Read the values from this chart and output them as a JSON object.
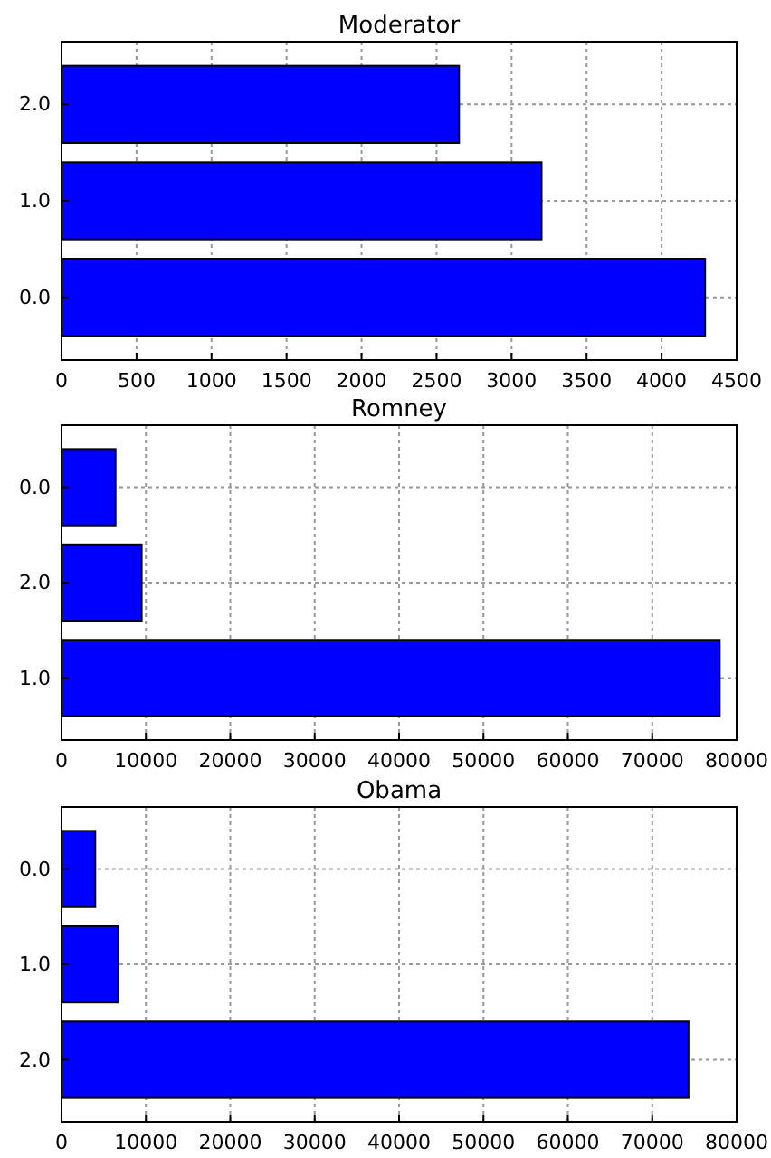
{
  "chart_data": [
    {
      "type": "bar",
      "orientation": "horizontal",
      "title": "Moderator",
      "categories": [
        "2.0",
        "1.0",
        "0.0"
      ],
      "values": [
        2650,
        3200,
        4290
      ],
      "color": "#0000ff",
      "xlim": [
        0,
        4500
      ],
      "xticks": [
        0,
        500,
        1000,
        1500,
        2000,
        2500,
        3000,
        3500,
        4000,
        4500
      ],
      "grid": true
    },
    {
      "type": "bar",
      "orientation": "horizontal",
      "title": "Romney",
      "categories": [
        "0.0",
        "2.0",
        "1.0"
      ],
      "values": [
        6400,
        9500,
        78000
      ],
      "color": "#0000ff",
      "xlim": [
        0,
        80000
      ],
      "xticks": [
        0,
        10000,
        20000,
        30000,
        40000,
        50000,
        60000,
        70000,
        80000
      ],
      "grid": true
    },
    {
      "type": "bar",
      "orientation": "horizontal",
      "title": "Obama",
      "categories": [
        "0.0",
        "1.0",
        "2.0"
      ],
      "values": [
        4000,
        6650,
        74300
      ],
      "color": "#0000ff",
      "xlim": [
        0,
        80000
      ],
      "xticks": [
        0,
        10000,
        20000,
        30000,
        40000,
        50000,
        60000,
        70000,
        80000
      ],
      "grid": true
    }
  ]
}
